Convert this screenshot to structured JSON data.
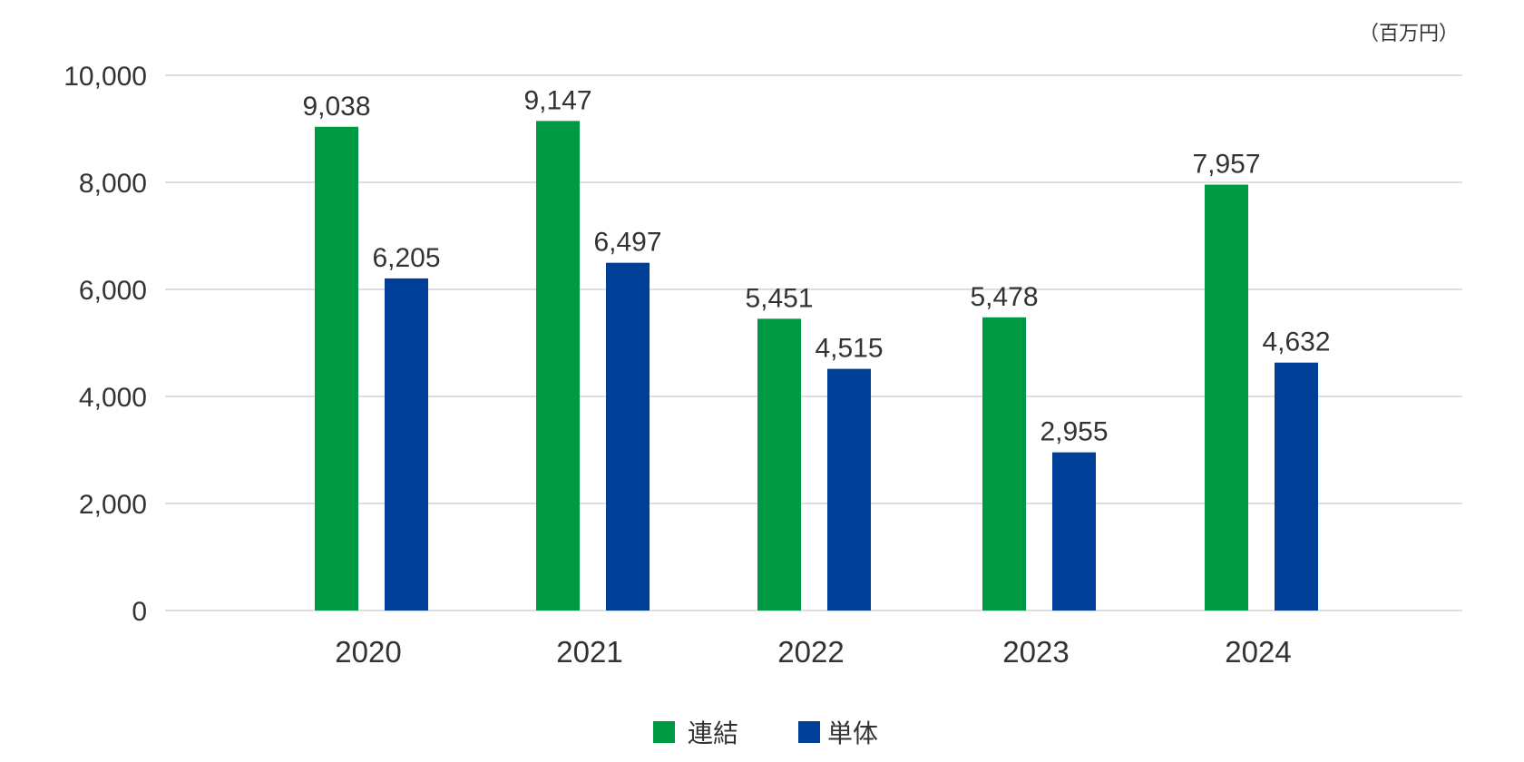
{
  "chart_data": {
    "type": "bar",
    "unit_label": "（百万円）",
    "categories": [
      "2020",
      "2021",
      "2022",
      "2023",
      "2024"
    ],
    "series": [
      {
        "name": "連結",
        "color": "#009944",
        "values": [
          9038,
          9147,
          5451,
          5478,
          7957
        ]
      },
      {
        "name": "単体",
        "color": "#003f98",
        "values": [
          6205,
          6497,
          4515,
          2955,
          4632
        ]
      }
    ],
    "ylim": [
      0,
      10000
    ],
    "yticks": [
      0,
      2000,
      4000,
      6000,
      8000,
      10000
    ],
    "grid": true,
    "legend_position": "bottom-center",
    "title": "",
    "xlabel": "",
    "ylabel": ""
  }
}
